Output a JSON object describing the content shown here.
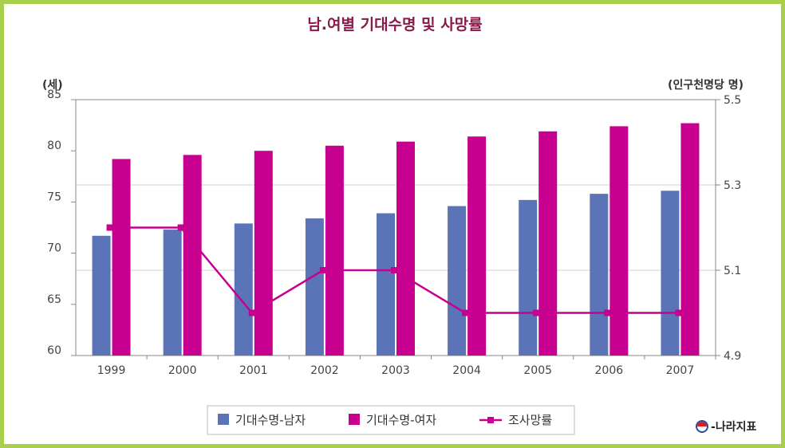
{
  "chart_data": {
    "type": "bar",
    "title": "남.여별 기대수명 및 사망률",
    "left_axis_label": "(세)",
    "right_axis_label": "(인구천명당 명)",
    "categories": [
      "1999",
      "2000",
      "2001",
      "2002",
      "2003",
      "2004",
      "2005",
      "2006",
      "2007"
    ],
    "left_axis": {
      "ylim": [
        60,
        85
      ],
      "ticks": [
        "60",
        "65",
        "70",
        "75",
        "80",
        "85"
      ]
    },
    "right_axis": {
      "ylim": [
        4.9,
        5.5
      ],
      "ticks": [
        "4.9",
        "5.1",
        "5.3",
        "5.5"
      ]
    },
    "grid": true,
    "legend_position": "bottom",
    "series": [
      {
        "name": "기대수명-남자",
        "type": "bar",
        "axis": "left",
        "color": "#5b73b7",
        "values": [
          71.7,
          72.3,
          72.9,
          73.4,
          73.9,
          74.6,
          75.2,
          75.8,
          76.1
        ]
      },
      {
        "name": "기대수명-여자",
        "type": "bar",
        "axis": "left",
        "color": "#c8008f",
        "values": [
          79.2,
          79.6,
          80.0,
          80.5,
          80.9,
          81.4,
          81.9,
          82.4,
          82.7
        ]
      },
      {
        "name": "조사망률",
        "type": "line",
        "axis": "right",
        "color": "#c8008f",
        "values": [
          5.2,
          5.2,
          5.0,
          5.1,
          5.1,
          5.0,
          5.0,
          5.0,
          5.0
        ]
      }
    ]
  },
  "source_label": "나라지표",
  "source_icon": "e-narajipyo-logo-icon"
}
